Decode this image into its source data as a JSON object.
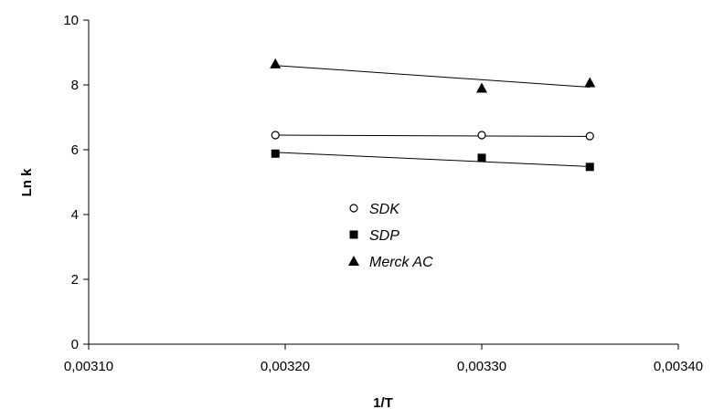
{
  "chart_data": {
    "type": "scatter",
    "title": "",
    "xlabel": "1/T",
    "ylabel": "Ln k",
    "xlim": [
      0.0031,
      0.0034
    ],
    "ylim": [
      0,
      10
    ],
    "x_ticks": [
      0.0031,
      0.0032,
      0.0033,
      0.0034
    ],
    "x_tick_labels": [
      "0,00310",
      "0,00320",
      "0,00330",
      "0,00340"
    ],
    "y_ticks": [
      0,
      2,
      4,
      6,
      8,
      10
    ],
    "y_tick_labels": [
      "0",
      "2",
      "4",
      "6",
      "8",
      "10"
    ],
    "grid": false,
    "legend_position": "center",
    "series": [
      {
        "name": "SDK",
        "marker": "open-circle",
        "x": [
          0.003195,
          0.0033,
          0.003355
        ],
        "y": [
          6.45,
          6.45,
          6.42
        ],
        "trendline": [
          [
            0.003195,
            6.45
          ],
          [
            0.003355,
            6.41
          ]
        ]
      },
      {
        "name": "SDP",
        "marker": "filled-square",
        "x": [
          0.003195,
          0.0033,
          0.003355
        ],
        "y": [
          5.88,
          5.75,
          5.47
        ],
        "trendline": [
          [
            0.003195,
            5.92
          ],
          [
            0.003355,
            5.48
          ]
        ]
      },
      {
        "name": "Merck AC",
        "marker": "filled-triangle",
        "x": [
          0.003195,
          0.0033,
          0.003355
        ],
        "y": [
          8.65,
          7.9,
          8.07
        ],
        "trendline": [
          [
            0.003195,
            8.6
          ],
          [
            0.003355,
            7.93
          ]
        ]
      }
    ]
  }
}
